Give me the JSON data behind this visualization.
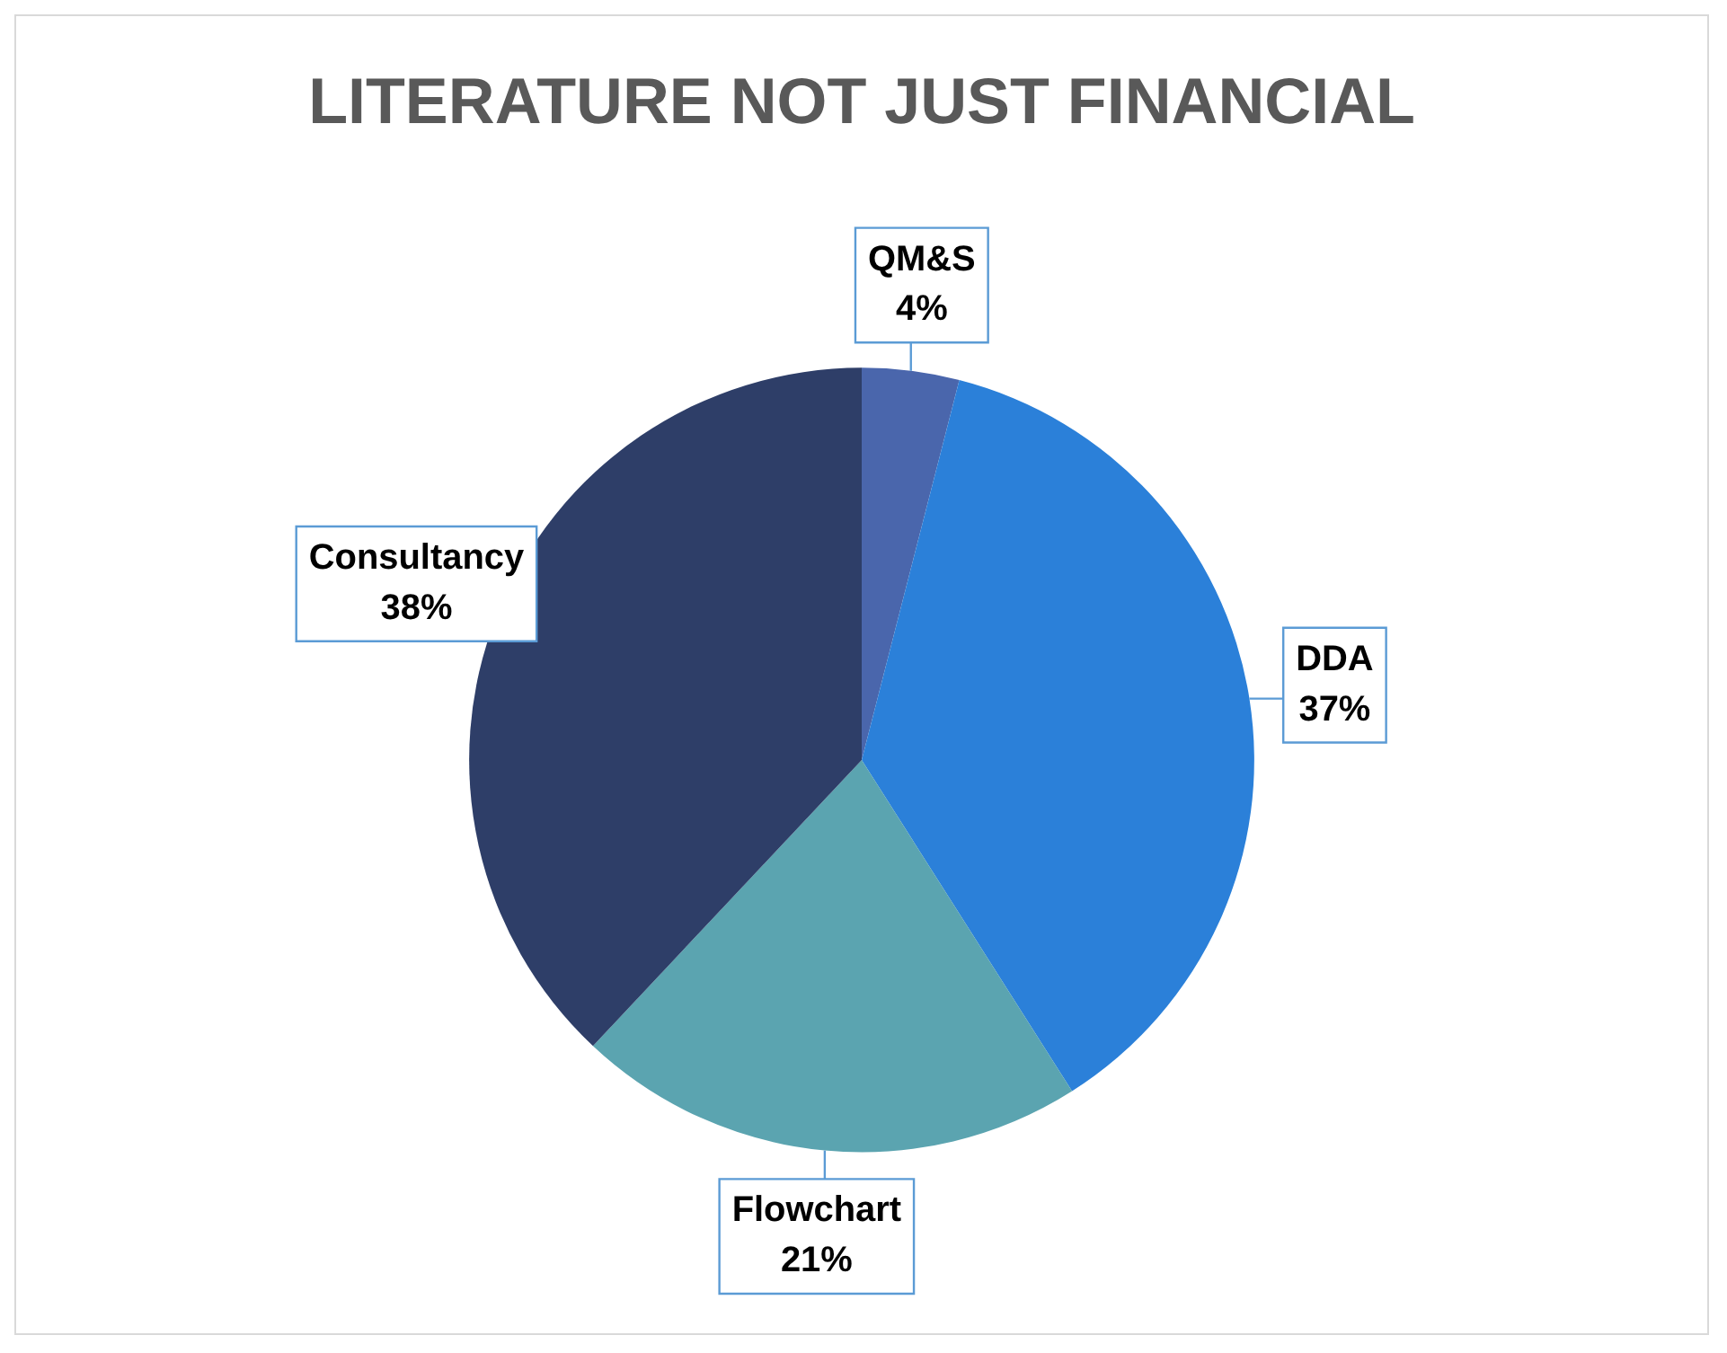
{
  "chart_data": {
    "type": "pie",
    "title": "LITERATURE NOT JUST FINANCIAL",
    "categories": [
      "QM&S",
      "DDA",
      "Flowchart",
      "Consultancy"
    ],
    "values": [
      4,
      37,
      21,
      38
    ],
    "colors": [
      "#4a66ac",
      "#2b80d9",
      "#5ba4b0",
      "#2e3e68"
    ],
    "value_labels": [
      "4%",
      "37%",
      "21%",
      "38%"
    ],
    "legend": false
  }
}
